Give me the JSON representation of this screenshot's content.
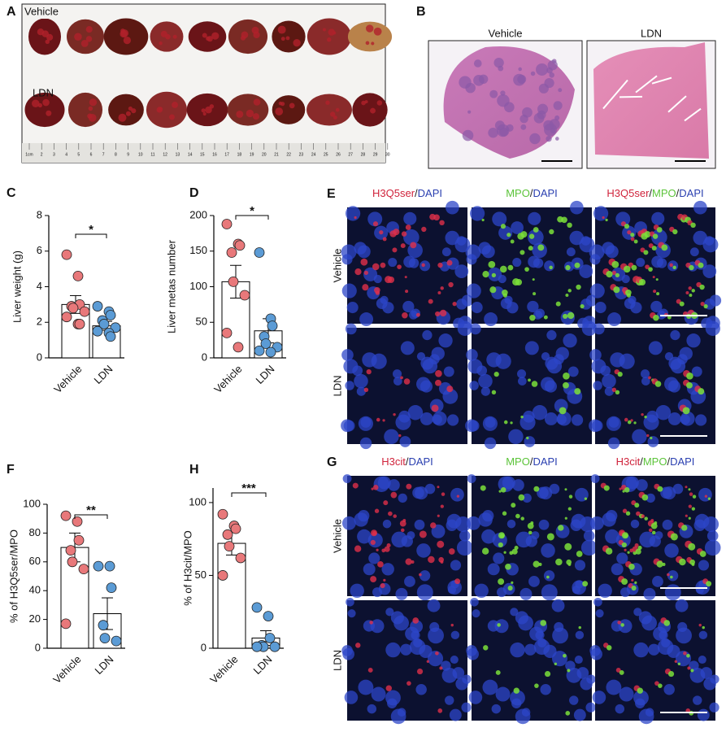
{
  "panel_a": {
    "label": "A",
    "rows": [
      "Vehicle",
      "LDN"
    ],
    "ruler": [
      "1cm",
      "2",
      "3",
      "4",
      "5",
      "6",
      "7",
      "8",
      "9",
      "10",
      "11",
      "12",
      "13",
      "14",
      "15",
      "16",
      "17",
      "18",
      "19",
      "20",
      "21",
      "22",
      "23",
      "24",
      "25",
      "26",
      "27",
      "28",
      "29",
      "30"
    ]
  },
  "panel_b": {
    "label": "B",
    "columns": [
      "Vehicle",
      "LDN"
    ]
  },
  "panel_e": {
    "label": "E",
    "rows": [
      "Vehicle",
      "LDN"
    ],
    "columns": [
      [
        {
          "text": "H3Q5ser",
          "color": "#d0243c"
        },
        {
          "text": "/",
          "color": "#222222"
        },
        {
          "text": "DAPI",
          "color": "#2a3fb0"
        }
      ],
      [
        {
          "text": "MPO",
          "color": "#5cc43a"
        },
        {
          "text": "/",
          "color": "#222222"
        },
        {
          "text": "DAPI",
          "color": "#2a3fb0"
        }
      ],
      [
        {
          "text": "H3Q5ser",
          "color": "#d0243c"
        },
        {
          "text": "/",
          "color": "#222222"
        },
        {
          "text": "MPO",
          "color": "#5cc43a"
        },
        {
          "text": "/",
          "color": "#222222"
        },
        {
          "text": "DAPI",
          "color": "#2a3fb0"
        }
      ]
    ]
  },
  "panel_g": {
    "label": "G",
    "rows": [
      "Vehicle",
      "LDN"
    ],
    "columns": [
      [
        {
          "text": "H3cit",
          "color": "#d0243c"
        },
        {
          "text": "/",
          "color": "#222222"
        },
        {
          "text": "DAPI",
          "color": "#2a3fb0"
        }
      ],
      [
        {
          "text": "MPO",
          "color": "#5cc43a"
        },
        {
          "text": "/",
          "color": "#222222"
        },
        {
          "text": "DAPI",
          "color": "#2a3fb0"
        }
      ],
      [
        {
          "text": "H3cit",
          "color": "#d0243c"
        },
        {
          "text": "/",
          "color": "#222222"
        },
        {
          "text": "MPO",
          "color": "#5cc43a"
        },
        {
          "text": "/",
          "color": "#222222"
        },
        {
          "text": "DAPI",
          "color": "#2a3fb0"
        }
      ]
    ]
  },
  "chart_data": [
    {
      "type": "bar",
      "panel": "C",
      "ylabel": "Liver weight (g)",
      "categories": [
        "Vehicle",
        "LDN"
      ],
      "values": [
        3.0,
        1.8
      ],
      "errors": [
        0.5,
        0.25
      ],
      "points": [
        [
          5.8,
          4.6,
          3.0,
          2.9,
          2.8,
          2.6,
          2.3,
          1.9,
          1.9
        ],
        [
          2.9,
          2.6,
          2.4,
          2.1,
          1.9,
          1.7,
          1.5,
          1.4,
          1.2
        ]
      ],
      "colors": [
        "#e8787a",
        "#5b9bd5"
      ],
      "ylim": [
        0,
        8
      ],
      "yticks": [
        0,
        2,
        4,
        6,
        8
      ],
      "significance": "*"
    },
    {
      "type": "bar",
      "panel": "D",
      "ylabel": "Liver metas number",
      "categories": [
        "Vehicle",
        "LDN"
      ],
      "values": [
        107,
        38
      ],
      "errors": [
        23,
        17
      ],
      "points": [
        [
          188,
          160,
          158,
          148,
          107,
          88,
          35,
          15
        ],
        [
          148,
          55,
          45,
          30,
          20,
          15,
          10,
          8
        ]
      ],
      "colors": [
        "#e8787a",
        "#5b9bd5"
      ],
      "ylim": [
        0,
        200
      ],
      "yticks": [
        0,
        50,
        100,
        150,
        200
      ],
      "significance": "*"
    },
    {
      "type": "bar",
      "panel": "F",
      "ylabel": "% of H3Q5ser/MPO",
      "categories": [
        "Vehicle",
        "LDN"
      ],
      "values": [
        70,
        24
      ],
      "errors": [
        10,
        11
      ],
      "points": [
        [
          92,
          88,
          75,
          68,
          60,
          55,
          17
        ],
        [
          57,
          57,
          42,
          16,
          7,
          5
        ]
      ],
      "colors": [
        "#e8787a",
        "#5b9bd5"
      ],
      "ylim": [
        0,
        100
      ],
      "yticks": [
        0,
        20,
        40,
        60,
        80,
        100
      ],
      "significance": "**"
    },
    {
      "type": "bar",
      "panel": "H",
      "ylabel": "% of H3cit/MPO",
      "categories": [
        "Vehicle",
        "LDN"
      ],
      "values": [
        72,
        7
      ],
      "errors": [
        8,
        5
      ],
      "points": [
        [
          92,
          84,
          82,
          78,
          70,
          62,
          50
        ],
        [
          28,
          22,
          7,
          2,
          1,
          1,
          1
        ]
      ],
      "colors": [
        "#e8787a",
        "#5b9bd5"
      ],
      "ylim": [
        0,
        110
      ],
      "yticks": [
        0,
        50,
        100
      ],
      "significance": "***"
    }
  ]
}
